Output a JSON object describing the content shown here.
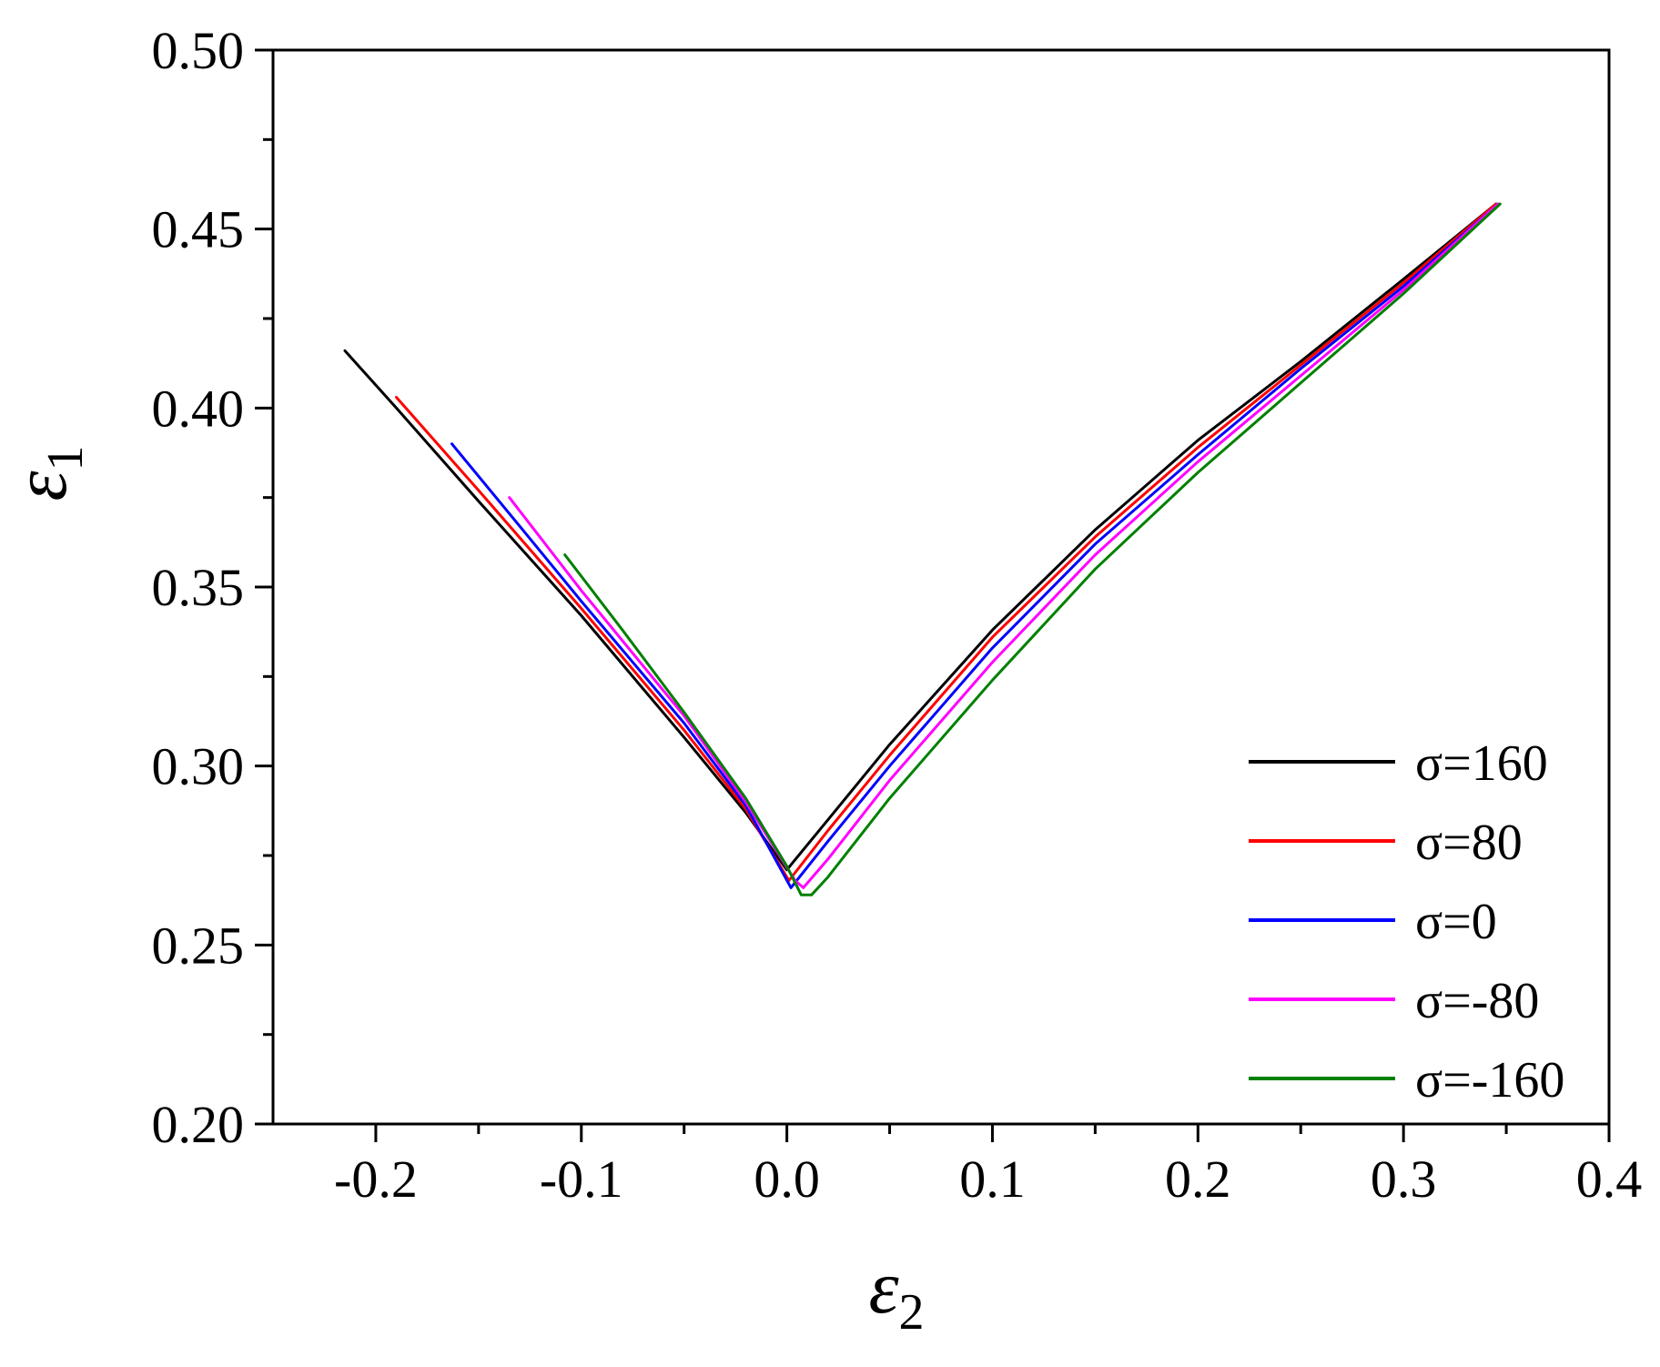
{
  "chart_data": {
    "type": "line",
    "title": "",
    "xlabel": {
      "symbol": "ε",
      "subscript": "2"
    },
    "ylabel": {
      "symbol": "ε",
      "subscript": "1"
    },
    "xlim": [
      -0.25,
      0.4
    ],
    "ylim": [
      0.2,
      0.5
    ],
    "x_ticks": [
      -0.2,
      -0.1,
      0.0,
      0.1,
      0.2,
      0.3,
      0.4
    ],
    "x_tick_labels": [
      "-0.2",
      "-0.1",
      "0.0",
      "0.1",
      "0.2",
      "0.3",
      "0.4"
    ],
    "y_ticks": [
      0.2,
      0.25,
      0.3,
      0.35,
      0.4,
      0.45,
      0.5
    ],
    "y_tick_labels": [
      "0.20",
      "0.25",
      "0.30",
      "0.35",
      "0.40",
      "0.45",
      "0.50"
    ],
    "grid": false,
    "legend_position": "bottom-right",
    "series": [
      {
        "name": "σ=160",
        "color": "#000000",
        "points": [
          [
            -0.215,
            0.416
          ],
          [
            -0.19,
            0.4
          ],
          [
            -0.15,
            0.374
          ],
          [
            -0.1,
            0.342
          ],
          [
            -0.05,
            0.308
          ],
          [
            -0.02,
            0.287
          ],
          [
            0.0,
            0.271
          ],
          [
            0.02,
            0.285
          ],
          [
            0.05,
            0.306
          ],
          [
            0.1,
            0.338
          ],
          [
            0.15,
            0.366
          ],
          [
            0.2,
            0.391
          ],
          [
            0.25,
            0.413
          ],
          [
            0.3,
            0.436
          ],
          [
            0.345,
            0.457
          ]
        ]
      },
      {
        "name": "σ=80",
        "color": "#ff0000",
        "points": [
          [
            -0.19,
            0.403
          ],
          [
            -0.15,
            0.377
          ],
          [
            -0.1,
            0.344
          ],
          [
            -0.05,
            0.31
          ],
          [
            -0.02,
            0.288
          ],
          [
            0.001,
            0.268
          ],
          [
            0.02,
            0.282
          ],
          [
            0.05,
            0.303
          ],
          [
            0.1,
            0.336
          ],
          [
            0.15,
            0.364
          ],
          [
            0.2,
            0.389
          ],
          [
            0.25,
            0.412
          ],
          [
            0.3,
            0.435
          ],
          [
            0.345,
            0.457
          ]
        ]
      },
      {
        "name": "σ=0",
        "color": "#0000ff",
        "points": [
          [
            -0.163,
            0.39
          ],
          [
            -0.13,
            0.367
          ],
          [
            -0.1,
            0.346
          ],
          [
            -0.05,
            0.312
          ],
          [
            -0.02,
            0.289
          ],
          [
            0.002,
            0.266
          ],
          [
            0.02,
            0.279
          ],
          [
            0.05,
            0.3
          ],
          [
            0.1,
            0.333
          ],
          [
            0.15,
            0.362
          ],
          [
            0.2,
            0.387
          ],
          [
            0.25,
            0.411
          ],
          [
            0.3,
            0.434
          ],
          [
            0.346,
            0.457
          ]
        ]
      },
      {
        "name": "σ=-80",
        "color": "#ff00ff",
        "points": [
          [
            -0.135,
            0.375
          ],
          [
            -0.1,
            0.349
          ],
          [
            -0.05,
            0.314
          ],
          [
            -0.02,
            0.29
          ],
          [
            0.004,
            0.268
          ],
          [
            0.008,
            0.266
          ],
          [
            0.02,
            0.274
          ],
          [
            0.05,
            0.296
          ],
          [
            0.1,
            0.329
          ],
          [
            0.15,
            0.359
          ],
          [
            0.2,
            0.385
          ],
          [
            0.25,
            0.409
          ],
          [
            0.3,
            0.433
          ],
          [
            0.346,
            0.457
          ]
        ]
      },
      {
        "name": "σ=-160",
        "color": "#008000",
        "points": [
          [
            -0.108,
            0.359
          ],
          [
            -0.08,
            0.338
          ],
          [
            -0.05,
            0.315
          ],
          [
            -0.02,
            0.291
          ],
          [
            0.0,
            0.272
          ],
          [
            0.007,
            0.264
          ],
          [
            0.012,
            0.264
          ],
          [
            0.02,
            0.269
          ],
          [
            0.05,
            0.291
          ],
          [
            0.1,
            0.324
          ],
          [
            0.15,
            0.355
          ],
          [
            0.2,
            0.382
          ],
          [
            0.25,
            0.407
          ],
          [
            0.3,
            0.432
          ],
          [
            0.347,
            0.457
          ]
        ]
      }
    ]
  }
}
